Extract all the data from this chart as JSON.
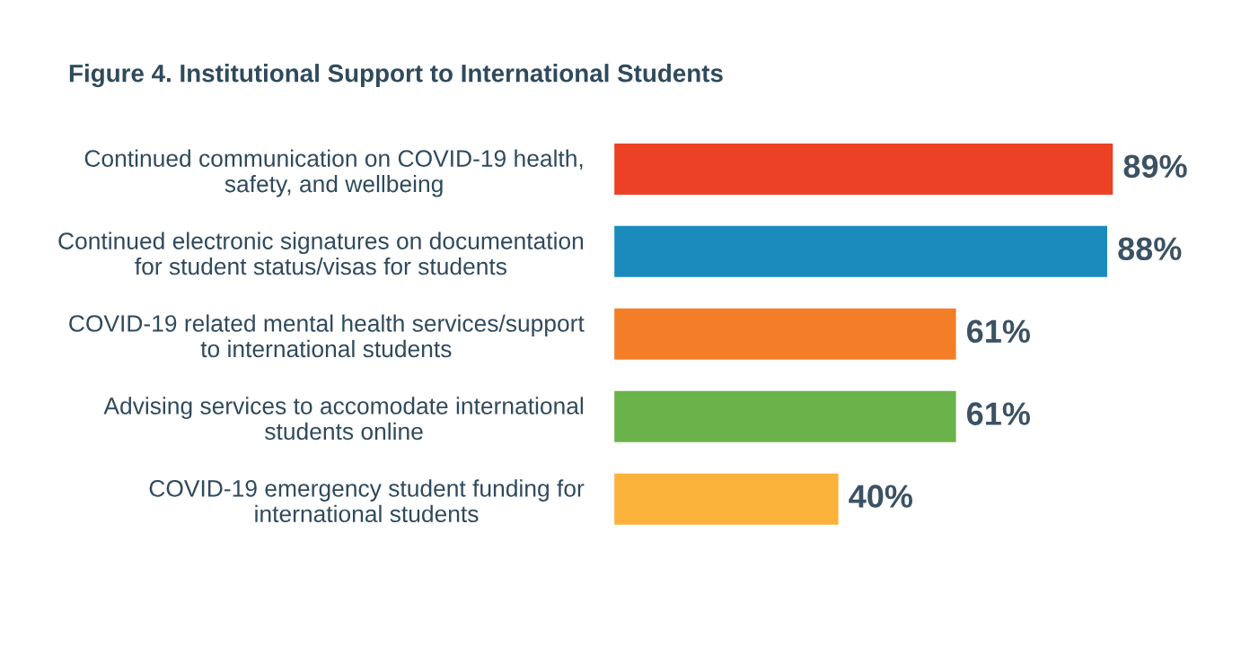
{
  "chart_data": {
    "type": "bar",
    "orientation": "horizontal",
    "title": "Figure 4. Institutional Support to International Students",
    "categories": [
      "Continued communication on COVID-19 health,\nsafety, and wellbeing",
      "Continued electronic signatures on documentation\nfor student status/visas for students",
      "COVID-19 related mental health services/support\nto international students",
      "Advising services to accomodate international\nstudents online",
      "COVID-19 emergency student funding for\ninternational students"
    ],
    "values": [
      89,
      88,
      61,
      61,
      40
    ],
    "value_labels": [
      "89%",
      "88%",
      "61%",
      "61%",
      "40%"
    ],
    "colors": [
      "#ec4124",
      "#1b8bbd",
      "#f47e28",
      "#6ab24a",
      "#fab23a"
    ],
    "grid": false,
    "legend": false
  }
}
